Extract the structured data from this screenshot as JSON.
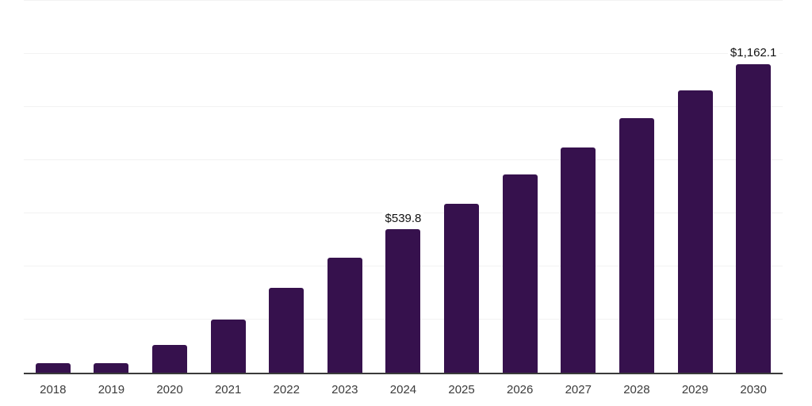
{
  "chart_data": {
    "type": "bar",
    "title": "",
    "xlabel": "",
    "ylabel": "",
    "categories": [
      "2018",
      "2019",
      "2020",
      "2021",
      "2022",
      "2023",
      "2024",
      "2025",
      "2026",
      "2027",
      "2028",
      "2029",
      "2030"
    ],
    "values": [
      36,
      37,
      105,
      200,
      320,
      433,
      539.8,
      636,
      745,
      848,
      958,
      1063,
      1162.1
    ],
    "point_labels": [
      "",
      "",
      "",
      "",
      "",
      "",
      "$539.8",
      "",
      "",
      "",
      "",
      "",
      "$1,162.1"
    ],
    "ylim": [
      0,
      1400
    ],
    "gridline_interval": 200,
    "grid": "horizontal",
    "legend": "none",
    "colors": {
      "bar": "#36114d",
      "gridline": "#f2f2f2",
      "axis": "#3a3a3a",
      "tick_label": "#3b3b3b",
      "value_label": "#111111",
      "background": "#ffffff"
    }
  }
}
